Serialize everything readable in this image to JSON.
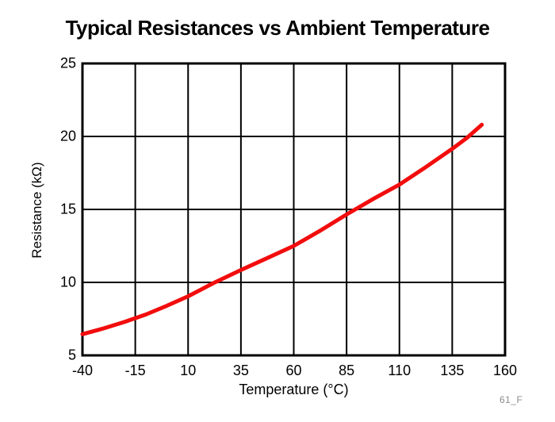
{
  "figure": {
    "fig_code": "61_F"
  },
  "colors": {
    "curve": "#F20D0D",
    "grid": "#000000",
    "frame": "#000000",
    "text": "#000000",
    "fig_code_gray": "#8C8C8E",
    "background": "#FFFFFF"
  },
  "chart_data": {
    "type": "line",
    "title": "Typical Resistances vs Ambient Temperature",
    "xlabel": "Temperature (°C)",
    "ylabel": "Resistance (kΩ)",
    "xlim": [
      -40,
      160
    ],
    "ylim": [
      5,
      25
    ],
    "xticks": [
      -40,
      -15,
      10,
      35,
      60,
      85,
      110,
      135,
      160
    ],
    "yticks": [
      5,
      10,
      15,
      20,
      25
    ],
    "grid": true,
    "legend_position": "none",
    "grid_color": "#000000",
    "frame_color": "#000000",
    "series": [
      {
        "name": "Typical resistance",
        "color": "#F20D0D",
        "x": [
          -40,
          -30,
          -20,
          -10,
          0,
          10,
          22,
          35,
          48,
          60,
          72,
          85,
          98,
          110,
          122,
          135,
          142,
          149
        ],
        "y": [
          6.45,
          6.85,
          7.3,
          7.8,
          8.4,
          9.05,
          9.95,
          10.85,
          11.7,
          12.5,
          13.5,
          14.65,
          15.75,
          16.7,
          17.85,
          19.15,
          19.9,
          20.8
        ]
      }
    ]
  }
}
